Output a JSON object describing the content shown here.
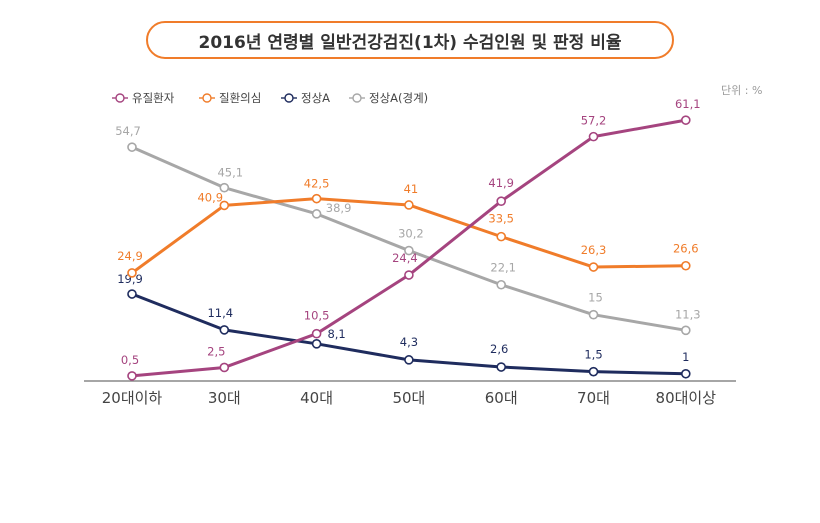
{
  "chart_data": {
    "type": "line",
    "title": "2016년 연령별 일반건강검진(1차) 수검인원 및 판정 비율",
    "unit": "단위 : %",
    "categories": [
      "20대이하",
      "30대",
      "40대",
      "50대",
      "60대",
      "70대",
      "80대이상"
    ],
    "ylim": [
      0,
      65
    ],
    "grid": false,
    "legend_position": "top-left",
    "series": [
      {
        "name": "유질환자",
        "color": "#a5447f",
        "values": [
          0.5,
          2.5,
          10.5,
          24.4,
          41.9,
          57.2,
          61.1
        ],
        "labels": [
          "0,5",
          "2,5",
          "10,5",
          "24,4",
          "41,9",
          "57,2",
          "61,1"
        ]
      },
      {
        "name": "질환의심",
        "color": "#f07c2a",
        "values": [
          24.9,
          40.9,
          42.5,
          41,
          33.5,
          26.3,
          26.6
        ],
        "labels": [
          "24,9",
          "40,9",
          "42,5",
          "41",
          "33,5",
          "26,3",
          "26,6"
        ]
      },
      {
        "name": "정상A",
        "color": "#1f2c5e",
        "values": [
          19.9,
          11.4,
          8.1,
          4.3,
          2.6,
          1.5,
          1
        ],
        "labels": [
          "19,9",
          "11,4",
          "8,1",
          "4,3",
          "2,6",
          "1,5",
          "1"
        ]
      },
      {
        "name": "정상A(경계)",
        "color": "#a7a7a7",
        "values": [
          54.7,
          45.1,
          38.9,
          30.2,
          22.1,
          15,
          11.3
        ],
        "labels": [
          "54,7",
          "45,1",
          "38,9",
          "30,2",
          "22,1",
          "15",
          "11,3"
        ]
      }
    ]
  }
}
